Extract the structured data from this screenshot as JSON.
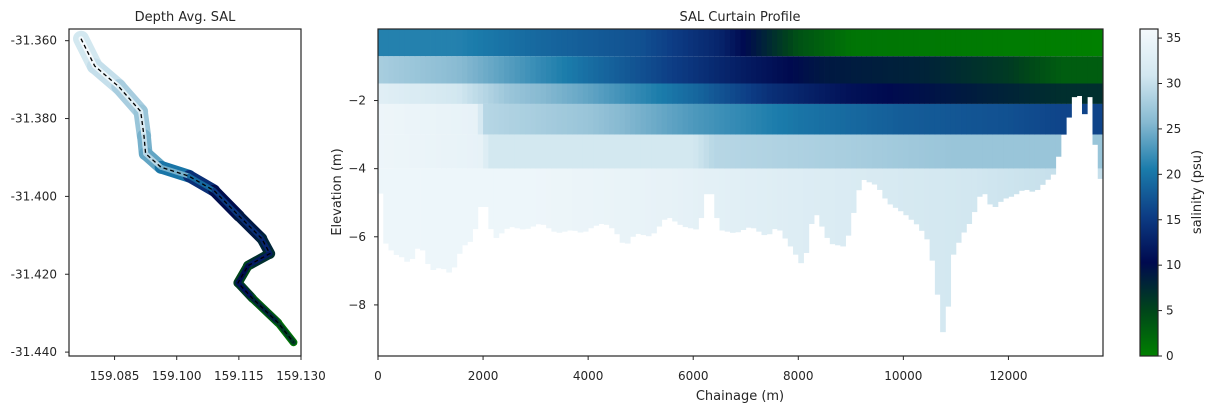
{
  "colors": {
    "scale": [
      "#008000",
      "#00441b",
      "#000a4f",
      "#0d3d85",
      "#1b7cab",
      "#86b9d1",
      "#d2e7f0",
      "#f4f9fc"
    ],
    "axis": "#262626",
    "river_path": "#000000"
  },
  "chart_data": [
    {
      "type": "heatmap",
      "title": "Depth Avg. SAL",
      "xlabel": "",
      "ylabel": "",
      "xlim": [
        159.074,
        159.13
      ],
      "ylim": [
        -31.441,
        -31.357
      ],
      "x_ticks": [
        "159.085",
        "159.100",
        "159.115",
        "159.130"
      ],
      "y_ticks": [
        "-31.360",
        "-31.380",
        "-31.400",
        "-31.420",
        "-31.440"
      ],
      "channel_centerline": [
        [
          159.0769,
          -31.3595
        ],
        [
          159.0802,
          -31.3665
        ],
        [
          159.086,
          -31.3718
        ],
        [
          159.0913,
          -31.3782
        ],
        [
          159.0921,
          -31.3845
        ],
        [
          159.0925,
          -31.389
        ],
        [
          159.0962,
          -31.3925
        ],
        [
          159.103,
          -31.3948
        ],
        [
          159.109,
          -31.3985
        ],
        [
          159.115,
          -31.405
        ],
        [
          159.1205,
          -31.4108
        ],
        [
          159.1225,
          -31.4147
        ],
        [
          159.1172,
          -31.4178
        ],
        [
          159.1148,
          -31.4222
        ],
        [
          159.1183,
          -31.4262
        ],
        [
          159.1245,
          -31.4325
        ],
        [
          159.1282,
          -31.4375
        ]
      ],
      "channel_salinity": [
        31,
        30,
        28,
        27,
        25,
        24,
        20,
        14,
        10,
        9,
        8,
        7,
        5,
        6,
        3,
        1
      ],
      "grid": false
    },
    {
      "type": "heatmap",
      "title": "SAL Curtain Profile",
      "xlabel": "Chainage (m)",
      "ylabel": "Elevation (m)",
      "xlim": [
        0,
        13800
      ],
      "ylim": [
        -9.5,
        0.1
      ],
      "x_ticks": [
        0,
        2000,
        4000,
        6000,
        8000,
        10000,
        12000
      ],
      "y_ticks": [
        -2,
        -4,
        -6,
        -8
      ],
      "layers": [
        {
          "z_top": 0.1,
          "z_bottom": -0.7,
          "salinity": [
            [
              0,
              21
            ],
            [
              1500,
              21
            ],
            [
              3000,
              19
            ],
            [
              5000,
              17
            ],
            [
              6500,
              13
            ],
            [
              7200,
              9
            ],
            [
              8000,
              4
            ],
            [
              9000,
              1
            ],
            [
              13800,
              0
            ]
          ]
        },
        {
          "z_top": -0.7,
          "z_bottom": -1.5,
          "salinity": [
            [
              0,
              28
            ],
            [
              1500,
              26
            ],
            [
              3000,
              22
            ],
            [
              5000,
              17
            ],
            [
              7000,
              12
            ],
            [
              8500,
              9
            ],
            [
              10500,
              8
            ],
            [
              12000,
              6
            ],
            [
              13000,
              3
            ]
          ]
        },
        {
          "z_top": -1.5,
          "z_bottom": -2.1,
          "salinity": [
            [
              0,
              33
            ],
            [
              1500,
              31
            ],
            [
              2500,
              27
            ],
            [
              4000,
              24
            ],
            [
              6000,
              19
            ],
            [
              7500,
              14
            ],
            [
              9000,
              11
            ],
            [
              11000,
              9
            ],
            [
              13000,
              7
            ]
          ]
        },
        {
          "z_top": -2.1,
          "z_bottom": -3.0,
          "salinity": [
            [
              0,
              35
            ],
            [
              1900,
              34
            ],
            [
              2000,
              29
            ],
            [
              4000,
              27
            ],
            [
              6000,
              23
            ],
            [
              8000,
              20
            ],
            [
              10000,
              18
            ],
            [
              12000,
              17
            ],
            [
              13000,
              16
            ]
          ]
        },
        {
          "z_top": -3.0,
          "z_bottom": -4.0,
          "salinity": [
            [
              0,
              35
            ],
            [
              2000,
              34
            ],
            [
              2100,
              31
            ],
            [
              6000,
              31
            ],
            [
              6400,
              29
            ],
            [
              9000,
              28
            ],
            [
              11000,
              27
            ],
            [
              13000,
              27
            ]
          ]
        },
        {
          "z_top": -4.0,
          "z_bottom": -10.0,
          "salinity": [
            [
              0,
              35
            ],
            [
              3000,
              35
            ],
            [
              5500,
              34
            ],
            [
              7000,
              33
            ],
            [
              9000,
              32
            ],
            [
              11000,
              31
            ],
            [
              13000,
              30
            ]
          ]
        }
      ],
      "bed_profile": [
        [
          0,
          -4.0
        ],
        [
          150,
          -6.2
        ],
        [
          300,
          -6.5
        ],
        [
          450,
          -6.6
        ],
        [
          600,
          -6.8
        ],
        [
          800,
          -6.2
        ],
        [
          1000,
          -7.0
        ],
        [
          1200,
          -6.9
        ],
        [
          1400,
          -7.1
        ],
        [
          1600,
          -6.3
        ],
        [
          1800,
          -6.1
        ],
        [
          2000,
          -4.8
        ],
        [
          2200,
          -6.1
        ],
        [
          2500,
          -5.7
        ],
        [
          2800,
          -5.8
        ],
        [
          3100,
          -5.6
        ],
        [
          3400,
          -5.9
        ],
        [
          3700,
          -5.8
        ],
        [
          3900,
          -5.9
        ],
        [
          4100,
          -5.7
        ],
        [
          4300,
          -5.6
        ],
        [
          4500,
          -5.8
        ],
        [
          4700,
          -6.3
        ],
        [
          4900,
          -5.9
        ],
        [
          5200,
          -6.0
        ],
        [
          5500,
          -5.4
        ],
        [
          5800,
          -5.7
        ],
        [
          6100,
          -5.8
        ],
        [
          6300,
          -4.4
        ],
        [
          6500,
          -5.8
        ],
        [
          6800,
          -5.9
        ],
        [
          7100,
          -5.7
        ],
        [
          7400,
          -6.0
        ],
        [
          7600,
          -5.7
        ],
        [
          7900,
          -6.4
        ],
        [
          8100,
          -6.9
        ],
        [
          8300,
          -5.2
        ],
        [
          8600,
          -6.2
        ],
        [
          8900,
          -6.3
        ],
        [
          9200,
          -4.3
        ],
        [
          9500,
          -4.5
        ],
        [
          9700,
          -5.0
        ],
        [
          10000,
          -5.3
        ],
        [
          10300,
          -5.7
        ],
        [
          10500,
          -6.2
        ],
        [
          10700,
          -8.2
        ],
        [
          10800,
          -9.4
        ],
        [
          10900,
          -6.7
        ],
        [
          11100,
          -6.0
        ],
        [
          11300,
          -5.5
        ],
        [
          11500,
          -4.6
        ],
        [
          11700,
          -5.2
        ],
        [
          11900,
          -4.9
        ],
        [
          12100,
          -4.8
        ],
        [
          12300,
          -4.6
        ],
        [
          12500,
          -4.7
        ],
        [
          12700,
          -4.4
        ],
        [
          12900,
          -4.1
        ],
        [
          13000,
          -3.2
        ],
        [
          13100,
          -2.8
        ],
        [
          13200,
          -2.2
        ],
        [
          13300,
          -1.6
        ],
        [
          13450,
          -2.4
        ],
        [
          13550,
          -1.9
        ],
        [
          13650,
          -3.3
        ],
        [
          13750,
          -4.3
        ],
        [
          13800,
          -4.3
        ]
      ],
      "grid": false
    }
  ],
  "colorbar": {
    "label": "salinity (psu)",
    "range": [
      0,
      36
    ],
    "ticks": [
      0,
      5,
      10,
      15,
      20,
      25,
      30,
      35
    ]
  }
}
